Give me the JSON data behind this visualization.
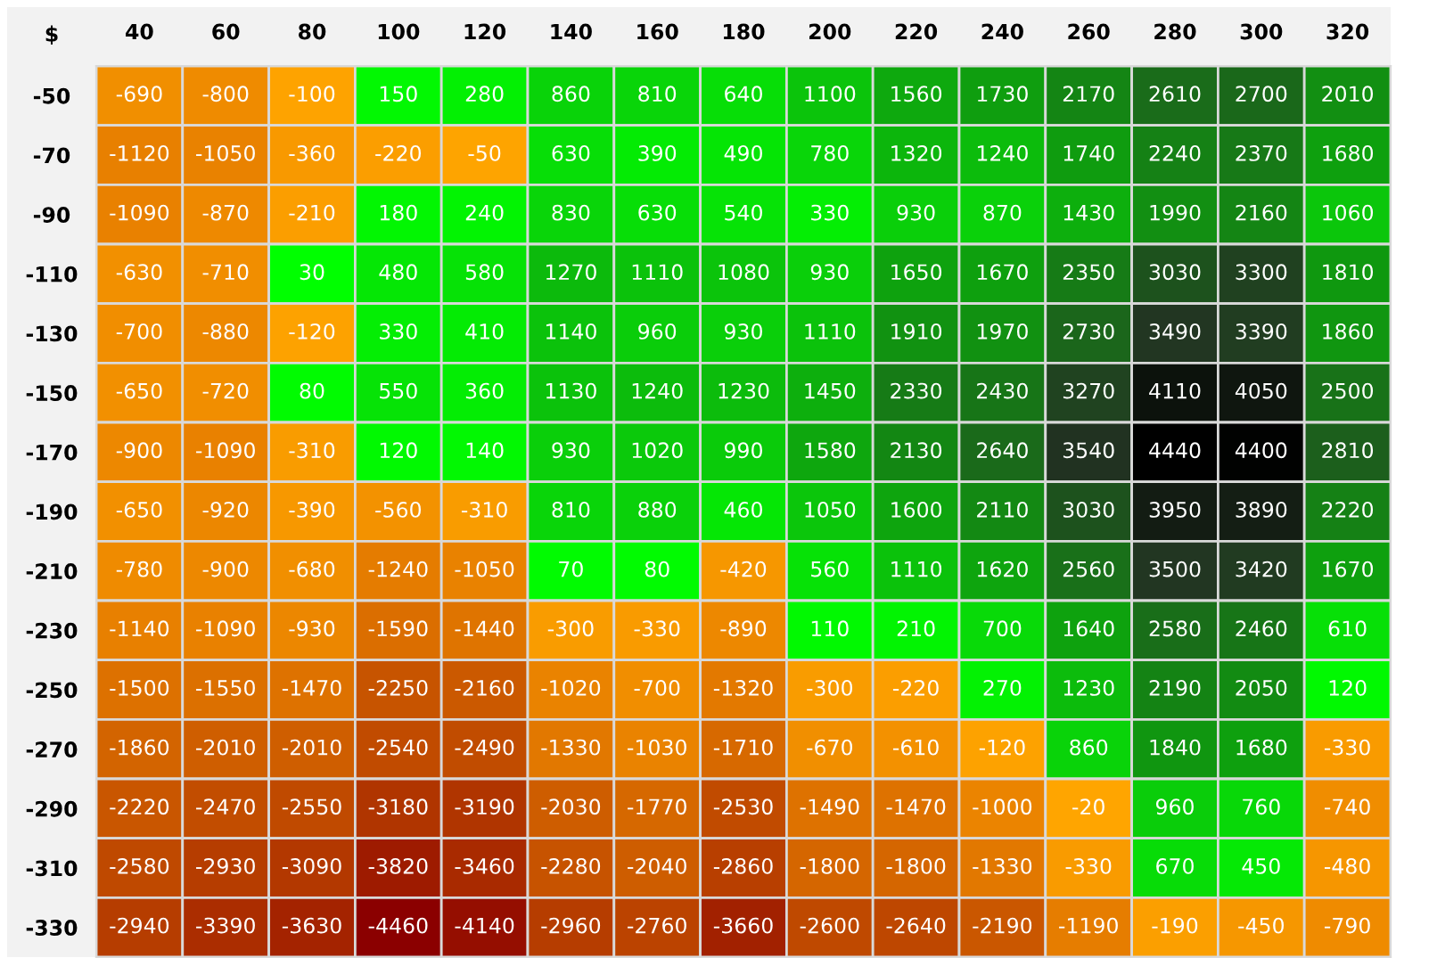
{
  "chart_data": {
    "type": "heatmap",
    "annotations": [
      "$"
    ],
    "categories": [
      "40",
      "60",
      "80",
      "100",
      "120",
      "140",
      "160",
      "180",
      "200",
      "220",
      "240",
      "260",
      "280",
      "300",
      "320"
    ],
    "y_categories": [
      "-50",
      "-70",
      "-90",
      "-110",
      "-130",
      "-150",
      "-170",
      "-190",
      "-210",
      "-230",
      "-250",
      "-270",
      "-290",
      "-310",
      "-330"
    ],
    "cells": [
      [
        -690,
        -800,
        -100,
        150,
        280,
        860,
        810,
        640,
        1100,
        1560,
        1730,
        2170,
        2610,
        2700,
        2010
      ],
      [
        -1120,
        -1050,
        -360,
        -220,
        -50,
        630,
        390,
        490,
        780,
        1320,
        1240,
        1740,
        2240,
        2370,
        1680
      ],
      [
        -1090,
        -870,
        -210,
        180,
        240,
        830,
        630,
        540,
        330,
        930,
        870,
        1430,
        1990,
        2160,
        1060
      ],
      [
        -630,
        -710,
        30,
        480,
        580,
        1270,
        1110,
        1080,
        930,
        1650,
        1670,
        2350,
        3030,
        3300,
        1810
      ],
      [
        -700,
        -880,
        -120,
        330,
        410,
        1140,
        960,
        930,
        1110,
        1910,
        1970,
        2730,
        3490,
        3390,
        1860
      ],
      [
        -650,
        -720,
        80,
        550,
        360,
        1130,
        1240,
        1230,
        1450,
        2330,
        2430,
        3270,
        4110,
        4050,
        2500
      ],
      [
        -900,
        -1090,
        -310,
        120,
        140,
        930,
        1020,
        990,
        1580,
        2130,
        2640,
        3540,
        4440,
        4400,
        2810
      ],
      [
        -650,
        -920,
        -390,
        -560,
        -310,
        810,
        880,
        460,
        1050,
        1600,
        2110,
        3030,
        3950,
        3890,
        2220
      ],
      [
        -780,
        -900,
        -680,
        -1240,
        -1050,
        70,
        80,
        -420,
        560,
        1110,
        1620,
        2560,
        3500,
        3420,
        1670
      ],
      [
        -1140,
        -1090,
        -930,
        -1590,
        -1440,
        -300,
        -330,
        -890,
        110,
        210,
        700,
        1640,
        2580,
        2460,
        610
      ],
      [
        -1500,
        -1550,
        -1470,
        -2250,
        -2160,
        -1020,
        -700,
        -1320,
        -300,
        -220,
        270,
        1230,
        2190,
        2050,
        120
      ],
      [
        -1860,
        -2010,
        -2010,
        -2540,
        -2490,
        -1330,
        -1030,
        -1710,
        -670,
        -610,
        -120,
        860,
        1840,
        1680,
        -330
      ],
      [
        -2220,
        -2470,
        -2550,
        -3180,
        -3190,
        -2030,
        -1770,
        -2530,
        -1490,
        -1470,
        -1000,
        -20,
        960,
        760,
        -740
      ],
      [
        -2580,
        -2930,
        -3090,
        -3820,
        -3460,
        -2280,
        -2040,
        -2860,
        -1800,
        -1800,
        -1330,
        -330,
        670,
        450,
        -480
      ],
      [
        -2940,
        -3390,
        -3630,
        -4460,
        -4140,
        -2960,
        -2760,
        -3660,
        -2600,
        -2640,
        -2190,
        -1190,
        -190,
        -450,
        -790
      ]
    ],
    "data_labels": true
  }
}
